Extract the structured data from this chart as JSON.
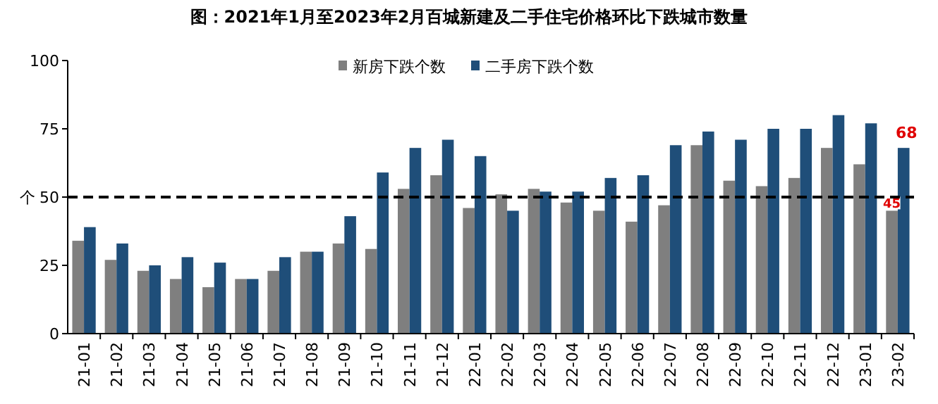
{
  "chart_data": {
    "type": "bar",
    "title": "图：2021年1月至2023年2月百城新建及二手住宅价格环比下跌城市数量",
    "ylabel": "个",
    "categories": [
      "21-01",
      "21-02",
      "21-03",
      "21-04",
      "21-05",
      "21-06",
      "21-07",
      "21-08",
      "21-09",
      "21-10",
      "21-11",
      "21-12",
      "22-01",
      "22-02",
      "22-03",
      "22-04",
      "22-05",
      "22-06",
      "22-07",
      "22-08",
      "22-09",
      "22-10",
      "22-11",
      "22-12",
      "23-01",
      "23-02"
    ],
    "series": [
      {
        "name": "新房下跌个数",
        "color": "#7f7f7f",
        "values": [
          34,
          27,
          23,
          20,
          17,
          20,
          23,
          30,
          33,
          31,
          53,
          58,
          46,
          51,
          53,
          48,
          45,
          41,
          47,
          69,
          56,
          54,
          57,
          68,
          62,
          45
        ],
        "value_labels": [
          null,
          null,
          null,
          null,
          null,
          null,
          null,
          null,
          null,
          null,
          null,
          null,
          null,
          null,
          null,
          null,
          null,
          null,
          null,
          null,
          null,
          null,
          null,
          null,
          null,
          "45"
        ]
      },
      {
        "name": "二手房下跌个数",
        "color": "#1f4e79",
        "values": [
          39,
          33,
          25,
          28,
          26,
          20,
          28,
          30,
          43,
          59,
          68,
          71,
          65,
          45,
          52,
          52,
          57,
          58,
          69,
          74,
          71,
          75,
          75,
          80,
          77,
          68
        ],
        "value_labels": [
          null,
          null,
          null,
          null,
          null,
          null,
          null,
          null,
          null,
          null,
          null,
          null,
          null,
          null,
          null,
          null,
          null,
          null,
          null,
          null,
          null,
          null,
          null,
          null,
          null,
          "68"
        ]
      }
    ],
    "ylim": [
      0,
      100
    ],
    "yticks": [
      0,
      25,
      50,
      75,
      100
    ],
    "grid": false,
    "legend": "top",
    "ref_lines": [
      {
        "axis": "y",
        "value": 50,
        "color": "#000000",
        "line_style": "dashed"
      }
    ]
  }
}
